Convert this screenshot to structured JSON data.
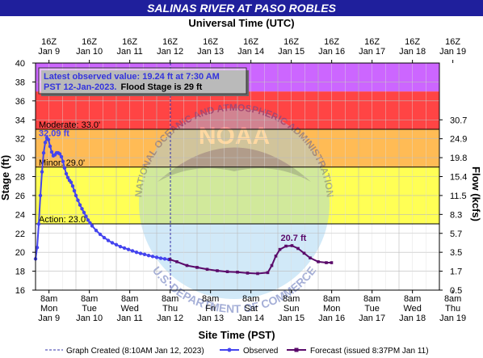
{
  "header": {
    "title": "SALINAS RIVER AT PASO ROBLES",
    "top_axis_title": "Universal Time (UTC)",
    "bottom_axis_title": "Site Time (PST)",
    "y_left_title": "Stage (ft)",
    "y_right_title": "Flow (kcfs)"
  },
  "info_box": {
    "line1": "Latest observed value: 19.24 ft at 7:30 AM",
    "line2_a": "PST 12-Jan-2023.",
    "line2_b": "Flood Stage is 29 ft"
  },
  "watermark": {
    "text": "NOAA",
    "ring_top": "NATIONAL OCEANIC AND ATMOSPHERIC ADMINISTRATION",
    "ring_bottom": "U.S. DEPARTMENT OF COMMERCE"
  },
  "legend": {
    "created": "Graph Created (8:10AM Jan 12, 2023)",
    "observed": "Observed",
    "forecast": "Forecast (issued 8:37PM Jan 11)"
  },
  "annotations": {
    "observed_peak": "32.09 ft",
    "forecast_peak": "20.7 ft"
  },
  "colors": {
    "title_bar": "#1f1f9c",
    "observed": "#4444ee",
    "forecast": "#5a0a6a",
    "major": "#cc66ff",
    "moderate": "#ff4444",
    "minor": "#ffbb55",
    "action": "#ffff55",
    "info_text": "#3333dd"
  },
  "chart_data": {
    "type": "line",
    "x_unit": "days since Jan 9 00:00 PST",
    "xlim": [
      0,
      10
    ],
    "ylim": [
      16,
      40
    ],
    "y_ticks": [
      16,
      18,
      20,
      22,
      24,
      26,
      28,
      30,
      32,
      34,
      36,
      38,
      40
    ],
    "bottom_ticks": [
      {
        "x": 0.333,
        "time": "8am",
        "day": "Mon",
        "date": "Jan 9"
      },
      {
        "x": 1.333,
        "time": "8am",
        "day": "Tue",
        "date": "Jan 10"
      },
      {
        "x": 2.333,
        "time": "8am",
        "day": "Wed",
        "date": "Jan 11"
      },
      {
        "x": 3.333,
        "time": "8am",
        "day": "Thu",
        "date": "Jan 12"
      },
      {
        "x": 4.333,
        "time": "8am",
        "day": "Fri",
        "date": "Jan 13"
      },
      {
        "x": 5.333,
        "time": "8am",
        "day": "Sat",
        "date": "Jan 14"
      },
      {
        "x": 6.333,
        "time": "8am",
        "day": "Sun",
        "date": "Jan 15"
      },
      {
        "x": 7.333,
        "time": "8am",
        "day": "Mon",
        "date": "Jan 16"
      },
      {
        "x": 8.333,
        "time": "8am",
        "day": "Tue",
        "date": "Jan 17"
      },
      {
        "x": 9.333,
        "time": "8am",
        "day": "Wed",
        "date": "Jan 18"
      },
      {
        "x": 10.333,
        "time": "8am",
        "day": "Thu",
        "date": "Jan 19"
      }
    ],
    "top_ticks": [
      {
        "x": 0.333,
        "time": "16Z",
        "date": "Jan 9"
      },
      {
        "x": 1.333,
        "time": "16Z",
        "date": "Jan 10"
      },
      {
        "x": 2.333,
        "time": "16Z",
        "date": "Jan 11"
      },
      {
        "x": 3.333,
        "time": "16Z",
        "date": "Jan 12"
      },
      {
        "x": 4.333,
        "time": "16Z",
        "date": "Jan 13"
      },
      {
        "x": 5.333,
        "time": "16Z",
        "date": "Jan 14"
      },
      {
        "x": 6.333,
        "time": "16Z",
        "date": "Jan 15"
      },
      {
        "x": 7.333,
        "time": "16Z",
        "date": "Jan 16"
      },
      {
        "x": 8.333,
        "time": "16Z",
        "date": "Jan 17"
      },
      {
        "x": 9.333,
        "time": "16Z",
        "date": "Jan 18"
      },
      {
        "x": 10.333,
        "time": "16Z",
        "date": "Jan 19"
      }
    ],
    "flow_ticks": [
      {
        "stage": 16.0,
        "label": "0.5"
      },
      {
        "stage": 18.0,
        "label": "1.7"
      },
      {
        "stage": 20.0,
        "label": "3.5"
      },
      {
        "stage": 22.0,
        "label": "5.7"
      },
      {
        "stage": 24.0,
        "label": "8.3"
      },
      {
        "stage": 26.0,
        "label": "11.5"
      },
      {
        "stage": 28.0,
        "label": "15.4"
      },
      {
        "stage": 30.0,
        "label": "19.8"
      },
      {
        "stage": 32.0,
        "label": "24.9"
      },
      {
        "stage": 34.0,
        "label": "30.7"
      }
    ],
    "thresholds": [
      {
        "name": "Action",
        "label": "Action:  23.0'",
        "value": 23.0,
        "band_top": 29.0
      },
      {
        "name": "Minor",
        "label": "Minor:  29.0'",
        "value": 29.0,
        "band_top": 33.0
      },
      {
        "name": "Moderate",
        "label": "Moderate:  33.0'",
        "value": 33.0,
        "band_top": 37.0
      },
      {
        "name": "Major",
        "value": 37.0,
        "band_top": 40.0
      }
    ],
    "created_time": 3.34,
    "series": [
      {
        "name": "Observed",
        "x": [
          0.0,
          0.04,
          0.08,
          0.12,
          0.16,
          0.2,
          0.24,
          0.28,
          0.32,
          0.36,
          0.4,
          0.44,
          0.48,
          0.52,
          0.56,
          0.6,
          0.64,
          0.68,
          0.72,
          0.76,
          0.8,
          0.84,
          0.88,
          0.92,
          0.96,
          1.0,
          1.05,
          1.1,
          1.15,
          1.2,
          1.25,
          1.3,
          1.35,
          1.4,
          1.5,
          1.6,
          1.7,
          1.8,
          1.9,
          2.0,
          2.1,
          2.2,
          2.3,
          2.4,
          2.5,
          2.6,
          2.7,
          2.8,
          2.9,
          3.0,
          3.1,
          3.2,
          3.3
        ],
        "values": [
          19.3,
          20.5,
          23.0,
          26.0,
          28.5,
          30.5,
          31.6,
          32.09,
          31.9,
          31.2,
          30.6,
          30.2,
          30.3,
          30.5,
          30.5,
          30.4,
          30.1,
          29.6,
          28.9,
          28.3,
          27.9,
          27.6,
          27.4,
          27.0,
          26.5,
          26.0,
          25.5,
          25.0,
          24.6,
          24.2,
          23.8,
          23.4,
          23.1,
          22.8,
          22.3,
          21.9,
          21.55,
          21.25,
          21.0,
          20.8,
          20.6,
          20.45,
          20.3,
          20.15,
          20.0,
          19.88,
          19.77,
          19.66,
          19.56,
          19.46,
          19.37,
          19.3,
          19.24
        ]
      },
      {
        "name": "Forecast",
        "x": [
          3.33,
          3.5,
          3.75,
          4.0,
          4.25,
          4.5,
          4.75,
          5.0,
          5.25,
          5.5,
          5.75,
          5.85,
          5.95,
          6.05,
          6.2,
          6.35,
          6.5,
          6.65,
          6.8,
          7.0,
          7.2,
          7.33
        ],
        "values": [
          19.24,
          19.0,
          18.6,
          18.4,
          18.2,
          18.05,
          17.95,
          17.9,
          17.8,
          17.75,
          17.85,
          18.6,
          19.6,
          20.3,
          20.65,
          20.7,
          20.4,
          19.9,
          19.4,
          19.0,
          18.9,
          18.9
        ]
      }
    ]
  }
}
